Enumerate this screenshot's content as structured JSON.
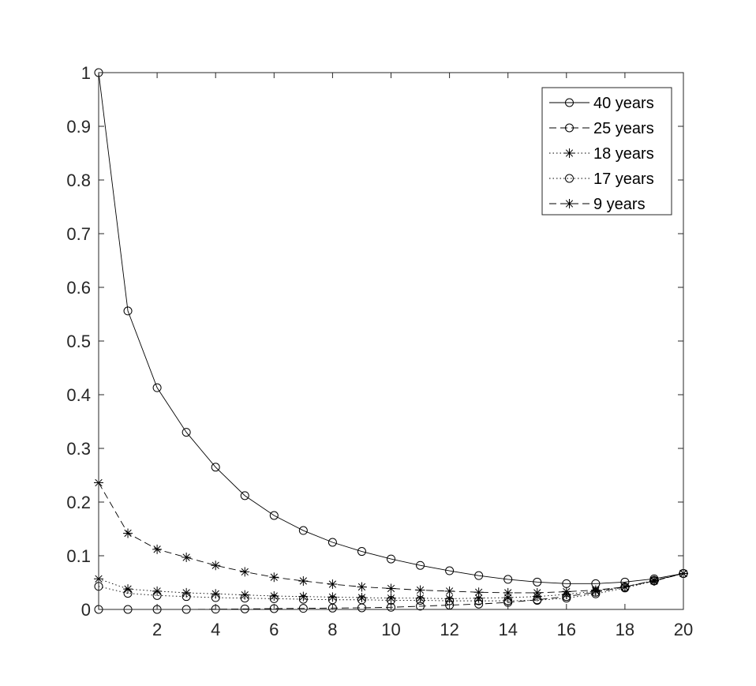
{
  "chart_data": {
    "type": "line",
    "title": "",
    "xlabel": "",
    "ylabel": "",
    "xlim": [
      0,
      20
    ],
    "ylim": [
      0,
      1
    ],
    "xticks": [
      2,
      4,
      6,
      8,
      10,
      12,
      14,
      16,
      18,
      20
    ],
    "yticks": [
      0,
      0.1,
      0.2,
      0.3,
      0.4,
      0.5,
      0.6,
      0.7,
      0.8,
      0.9,
      1
    ],
    "xtick_labels": [
      "2",
      "4",
      "6",
      "8",
      "10",
      "12",
      "14",
      "16",
      "18",
      "20"
    ],
    "ytick_labels": [
      "0",
      "0.1",
      "0.2",
      "0.3",
      "0.4",
      "0.5",
      "0.6",
      "0.7",
      "0.8",
      "0.9",
      "1"
    ],
    "grid": false,
    "legend_position": "top-right",
    "x": [
      0,
      1,
      2,
      3,
      4,
      5,
      6,
      7,
      8,
      9,
      10,
      11,
      12,
      13,
      14,
      15,
      16,
      17,
      18,
      19,
      20
    ],
    "series": [
      {
        "name": "40 years",
        "line_style": "solid",
        "marker": "circle",
        "values": [
          1.0,
          0.556,
          0.413,
          0.33,
          0.265,
          0.212,
          0.175,
          0.147,
          0.125,
          0.108,
          0.094,
          0.082,
          0.072,
          0.063,
          0.056,
          0.051,
          0.048,
          0.048,
          0.051,
          0.057,
          0.067
        ]
      },
      {
        "name": "25 years",
        "line_style": "dashed",
        "marker": "circle",
        "values": [
          0.0,
          0.0,
          0.0,
          0.0,
          0.0005,
          0.001,
          0.0015,
          0.002,
          0.0025,
          0.003,
          0.004,
          0.006,
          0.008,
          0.01,
          0.013,
          0.018,
          0.024,
          0.032,
          0.042,
          0.054,
          0.067
        ]
      },
      {
        "name": "18 years",
        "line_style": "dotted",
        "marker": "star",
        "values": [
          0.057,
          0.038,
          0.034,
          0.031,
          0.029,
          0.027,
          0.025,
          0.024,
          0.023,
          0.022,
          0.021,
          0.021,
          0.02,
          0.021,
          0.022,
          0.024,
          0.028,
          0.034,
          0.042,
          0.054,
          0.067
        ]
      },
      {
        "name": "17 years",
        "line_style": "dotted",
        "marker": "circle",
        "values": [
          0.043,
          0.03,
          0.026,
          0.024,
          0.022,
          0.021,
          0.02,
          0.019,
          0.018,
          0.018,
          0.017,
          0.017,
          0.016,
          0.016,
          0.016,
          0.017,
          0.021,
          0.029,
          0.04,
          0.053,
          0.067
        ]
      },
      {
        "name": "9 years",
        "line_style": "dashed",
        "marker": "star",
        "values": [
          0.236,
          0.142,
          0.112,
          0.097,
          0.082,
          0.07,
          0.06,
          0.053,
          0.047,
          0.042,
          0.039,
          0.036,
          0.034,
          0.032,
          0.031,
          0.031,
          0.033,
          0.036,
          0.042,
          0.053,
          0.067
        ]
      }
    ]
  }
}
